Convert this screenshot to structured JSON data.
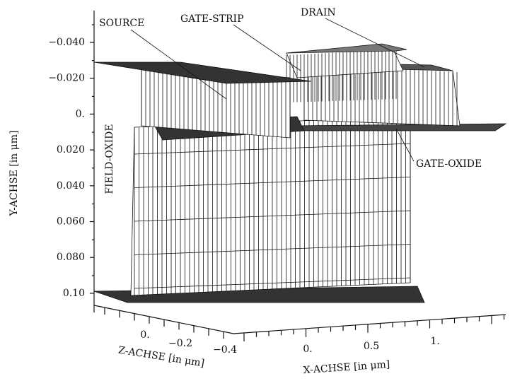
{
  "figure": {
    "y_axis": {
      "title": "Y-ACHSE [in μm]",
      "tick_labels": [
        "−0.040",
        "−0.020",
        "0.",
        "0.020",
        "0.040",
        "0.060",
        "0.080",
        "0.10"
      ]
    },
    "z_axis": {
      "title": "Z-ACHSE [in μm]",
      "tick_labels": [
        "0.",
        "−0.2",
        "−0.4"
      ]
    },
    "x_axis": {
      "title": "X-ACHSE [in μm]",
      "tick_labels": [
        "0.",
        "0.5",
        "1."
      ]
    },
    "annotations": [
      "SOURCE",
      "GATE-STRIP",
      "DRAIN",
      "GATE-OXIDE",
      "FIELD-OXIDE"
    ]
  }
}
